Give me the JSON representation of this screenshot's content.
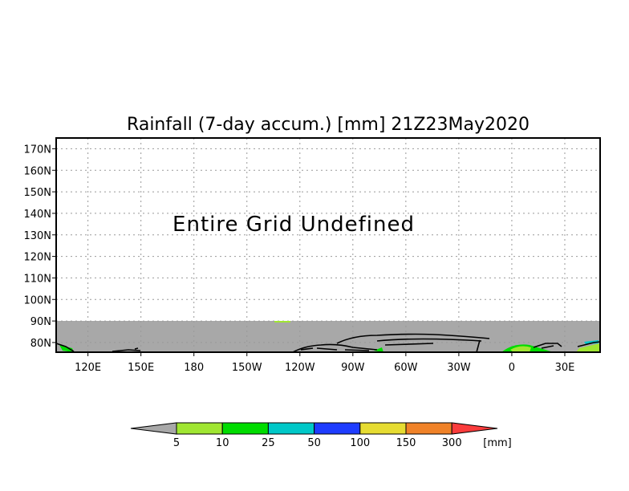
{
  "chart_data": {
    "type": "heatmap",
    "title": "Rainfall (7-day accum.) [mm] 21Z23May2020",
    "annotation": "Entire Grid Undefined",
    "x_ticks": [
      "120E",
      "150E",
      "180",
      "150W",
      "120W",
      "90W",
      "60W",
      "30W",
      "0",
      "30E"
    ],
    "x_tick_values": [
      120,
      150,
      180,
      210,
      240,
      270,
      300,
      330,
      360,
      390
    ],
    "xlim": [
      102,
      410
    ],
    "y_ticks": [
      "170N",
      "160N",
      "150N",
      "140N",
      "130N",
      "120N",
      "110N",
      "100N",
      "90N",
      "80N"
    ],
    "y_tick_values": [
      170,
      160,
      150,
      140,
      130,
      120,
      110,
      100,
      90,
      80
    ],
    "ylim": [
      75.5,
      175
    ],
    "grid": true,
    "undefined_color": "#a8a8a8",
    "colorbar": {
      "levels": [
        "5",
        "10",
        "25",
        "50",
        "100",
        "150",
        "300"
      ],
      "unit": "[mm]",
      "colors": [
        "#a8a8a8",
        "#a0e632",
        "#00dc00",
        "#00c8c8",
        "#1e3cff",
        "#e6dc32",
        "#f08228",
        "#fa3c3c"
      ]
    }
  }
}
